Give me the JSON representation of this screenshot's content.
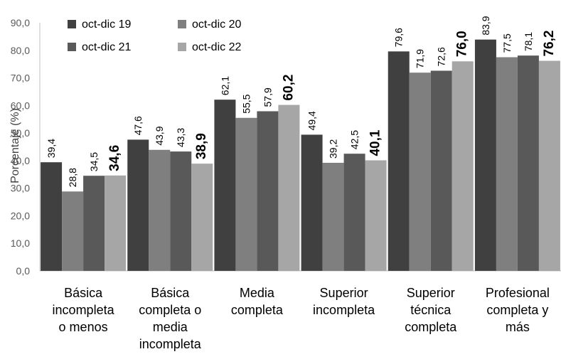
{
  "chart_data": {
    "type": "bar",
    "ylabel": "Porcentaje (%)",
    "ylim": [
      0,
      90
    ],
    "ytick_step": 10,
    "ytick_labels": [
      "0,0",
      "10,0",
      "20,0",
      "30,0",
      "40,0",
      "50,0",
      "60,0",
      "70,0",
      "80,0",
      "90,0"
    ],
    "grid": false,
    "legend_position": "top-left",
    "categories": [
      "Básica incompleta o menos",
      "Básica completa o media incompleta",
      "Media completa",
      "Superior incompleta",
      "Superior técnica completa",
      "Profesional completa y más"
    ],
    "category_lines": [
      [
        "Básica",
        "incompleta",
        "o menos"
      ],
      [
        "Básica",
        "completa o",
        "media",
        "incompleta"
      ],
      [
        "Media",
        "completa"
      ],
      [
        "Superior",
        "incompleta"
      ],
      [
        "Superior",
        "técnica",
        "completa"
      ],
      [
        "Profesional",
        "completa y",
        "más"
      ]
    ],
    "series": [
      {
        "name": "oct-dic 19",
        "color": "#404040",
        "values": [
          39.4,
          47.6,
          62.1,
          49.4,
          79.6,
          83.9
        ],
        "labels": [
          "39,4",
          "47,6",
          "62,1",
          "49,4",
          "79,6",
          "83,9"
        ]
      },
      {
        "name": "oct-dic 20",
        "color": "#7f7f7f",
        "values": [
          28.8,
          43.9,
          55.5,
          39.2,
          71.9,
          77.5
        ],
        "labels": [
          "28,8",
          "43,9",
          "55,5",
          "39,2",
          "71,9",
          "77,5"
        ]
      },
      {
        "name": "oct-dic 21",
        "color": "#595959",
        "values": [
          34.5,
          43.3,
          57.9,
          42.5,
          72.6,
          78.1
        ],
        "labels": [
          "34,5",
          "43,3",
          "57,9",
          "42,5",
          "72,6",
          "78,1"
        ]
      },
      {
        "name": "oct-dic 22",
        "color": "#a6a6a6",
        "values": [
          34.6,
          38.9,
          60.2,
          40.1,
          76.0,
          76.2
        ],
        "labels": [
          "34,6",
          "38,9",
          "60,2",
          "40,1",
          "76,0",
          "76,2"
        ]
      }
    ],
    "emphasized_series": "oct-dic 22"
  }
}
